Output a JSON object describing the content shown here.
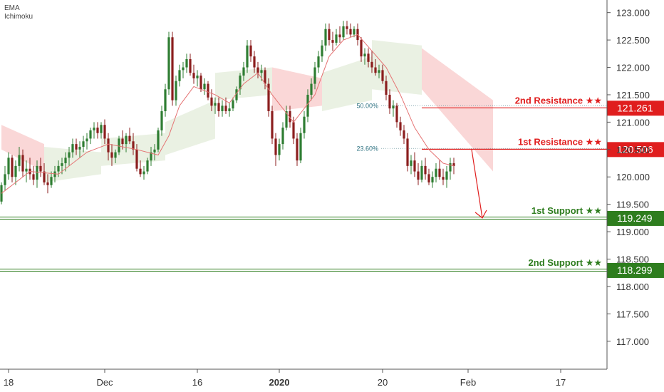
{
  "indicators": [
    "EMA",
    "Ichimoku"
  ],
  "colors": {
    "up": "#2e7d32",
    "down": "#8b1e1e",
    "ema": "#e57373",
    "cloud_bear": "#f8c9c9",
    "cloud_bull": "#e3ecd9",
    "resistance": "#e01e1e",
    "support": "#2e7d1e",
    "fib": "#7aa0a8",
    "axis": "#555555"
  },
  "chart_data": {
    "type": "candlestick",
    "y_range": [
      116.75,
      123.1
    ],
    "y_ticks": [
      "123.000",
      "122.500",
      "122.000",
      "121.500",
      "121.000",
      "120.500",
      "120.000",
      "119.500",
      "119.000",
      "118.500",
      "118.000",
      "117.500",
      "117.000"
    ],
    "x_ticks": [
      {
        "label": "18",
        "bar": 2
      },
      {
        "label": "Dec",
        "bar": 29
      },
      {
        "label": "16",
        "bar": 55
      },
      {
        "label": "2020",
        "bar": 78,
        "bold": true
      },
      {
        "label": "20",
        "bar": 107
      },
      {
        "label": "Feb",
        "bar": 131
      },
      {
        "label": "17",
        "bar": 157
      }
    ],
    "levels": [
      {
        "label": "2nd Resistance ★★",
        "value": "121.261",
        "y": 121.261,
        "kind": "resistance",
        "line_from_bar": 118
      },
      {
        "label": "1st Resistance ★★",
        "value": "120.506",
        "y": 120.506,
        "kind": "resistance",
        "line_from_bar": 118
      },
      {
        "label": "1st Support ★★",
        "value": "119.249",
        "y": 119.249,
        "kind": "support"
      },
      {
        "label": "2nd Support ★★",
        "value": "118.299",
        "y": 118.299,
        "kind": "support"
      }
    ],
    "fibonacci": [
      {
        "label": "50.00%",
        "y": 121.3
      },
      {
        "label": "23.60%",
        "y": 120.52
      }
    ],
    "arrow": {
      "from_bar": 132,
      "from_y": 120.5,
      "to_bar": 135,
      "to_y": 119.25
    },
    "ohlc": [
      [
        119.55,
        119.9,
        119.5,
        119.85
      ],
      [
        119.85,
        120.2,
        119.75,
        120.05
      ],
      [
        120.05,
        120.45,
        119.95,
        120.35
      ],
      [
        120.35,
        120.4,
        119.9,
        120.0
      ],
      [
        120.0,
        120.3,
        119.85,
        120.2
      ],
      [
        120.2,
        120.55,
        120.1,
        120.4
      ],
      [
        120.4,
        120.5,
        120.0,
        120.1
      ],
      [
        120.1,
        120.3,
        119.9,
        120.15
      ],
      [
        120.15,
        120.35,
        119.95,
        120.05
      ],
      [
        120.05,
        120.2,
        119.85,
        119.95
      ],
      [
        119.95,
        120.3,
        119.8,
        120.2
      ],
      [
        120.2,
        120.35,
        120.0,
        120.1
      ],
      [
        120.1,
        120.25,
        119.85,
        119.9
      ],
      [
        119.9,
        120.05,
        119.7,
        119.85
      ],
      [
        119.85,
        120.1,
        119.8,
        120.0
      ],
      [
        120.0,
        120.2,
        119.9,
        120.1
      ],
      [
        120.1,
        120.3,
        120.0,
        120.2
      ],
      [
        120.2,
        120.35,
        120.05,
        120.25
      ],
      [
        120.25,
        120.45,
        120.1,
        120.35
      ],
      [
        120.35,
        120.55,
        120.2,
        120.45
      ],
      [
        120.45,
        120.7,
        120.35,
        120.6
      ],
      [
        120.6,
        120.7,
        120.4,
        120.5
      ],
      [
        120.5,
        120.65,
        120.35,
        120.55
      ],
      [
        120.55,
        120.75,
        120.45,
        120.65
      ],
      [
        120.65,
        120.8,
        120.5,
        120.7
      ],
      [
        120.7,
        120.9,
        120.6,
        120.85
      ],
      [
        120.85,
        121.0,
        120.7,
        120.9
      ],
      [
        120.9,
        121.0,
        120.7,
        120.8
      ],
      [
        120.8,
        121.0,
        120.7,
        120.95
      ],
      [
        120.95,
        121.05,
        120.6,
        120.7
      ],
      [
        120.7,
        120.8,
        120.3,
        120.45
      ],
      [
        120.45,
        120.6,
        120.2,
        120.35
      ],
      [
        120.35,
        120.5,
        120.25,
        120.45
      ],
      [
        120.45,
        120.75,
        120.4,
        120.7
      ],
      [
        120.7,
        120.85,
        120.5,
        120.6
      ],
      [
        120.6,
        120.8,
        120.45,
        120.75
      ],
      [
        120.75,
        120.9,
        120.6,
        120.65
      ],
      [
        120.65,
        120.8,
        120.4,
        120.5
      ],
      [
        120.5,
        120.6,
        120.1,
        120.15
      ],
      [
        120.15,
        120.3,
        120.0,
        120.05
      ],
      [
        120.05,
        120.2,
        119.95,
        120.1
      ],
      [
        120.1,
        120.35,
        120.05,
        120.3
      ],
      [
        120.3,
        120.55,
        120.2,
        120.45
      ],
      [
        120.45,
        120.6,
        120.3,
        120.5
      ],
      [
        120.5,
        120.9,
        120.45,
        120.85
      ],
      [
        120.85,
        121.3,
        120.75,
        121.2
      ],
      [
        121.2,
        121.7,
        121.1,
        121.6
      ],
      [
        121.6,
        122.65,
        121.5,
        122.55
      ],
      [
        122.55,
        122.65,
        121.3,
        121.4
      ],
      [
        121.4,
        121.85,
        121.3,
        121.75
      ],
      [
        121.75,
        122.05,
        121.65,
        121.95
      ],
      [
        121.95,
        122.1,
        121.8,
        122.0
      ],
      [
        122.0,
        122.25,
        121.9,
        122.15
      ],
      [
        122.15,
        122.25,
        121.85,
        121.9
      ],
      [
        121.9,
        122.05,
        121.7,
        121.8
      ],
      [
        121.8,
        121.95,
        121.65,
        121.85
      ],
      [
        121.85,
        121.9,
        121.55,
        121.6
      ],
      [
        121.6,
        121.8,
        121.5,
        121.7
      ],
      [
        121.7,
        121.75,
        121.4,
        121.45
      ],
      [
        121.45,
        121.6,
        121.2,
        121.3
      ],
      [
        121.3,
        121.45,
        121.15,
        121.35
      ],
      [
        121.35,
        121.45,
        121.1,
        121.2
      ],
      [
        121.2,
        121.4,
        121.1,
        121.3
      ],
      [
        121.3,
        121.45,
        121.15,
        121.2
      ],
      [
        121.2,
        121.35,
        121.1,
        121.25
      ],
      [
        121.25,
        121.45,
        121.2,
        121.4
      ],
      [
        121.4,
        121.65,
        121.35,
        121.6
      ],
      [
        121.6,
        121.9,
        121.5,
        121.85
      ],
      [
        121.85,
        122.1,
        121.75,
        122.0
      ],
      [
        122.0,
        122.5,
        121.9,
        122.4
      ],
      [
        122.4,
        122.5,
        122.1,
        122.2
      ],
      [
        122.2,
        122.3,
        121.9,
        122.0
      ],
      [
        122.0,
        122.1,
        121.8,
        121.9
      ],
      [
        121.9,
        122.05,
        121.75,
        121.95
      ],
      [
        121.95,
        122.0,
        121.6,
        121.7
      ],
      [
        121.7,
        121.8,
        121.1,
        121.2
      ],
      [
        121.2,
        121.3,
        120.6,
        120.7
      ],
      [
        120.7,
        120.8,
        120.2,
        120.4
      ],
      [
        120.4,
        120.7,
        120.3,
        120.6
      ],
      [
        120.6,
        121.0,
        120.5,
        120.9
      ],
      [
        120.9,
        121.3,
        120.85,
        121.2
      ],
      [
        121.2,
        121.3,
        120.9,
        121.0
      ],
      [
        121.0,
        121.1,
        120.6,
        120.7
      ],
      [
        120.7,
        120.8,
        120.2,
        120.3
      ],
      [
        120.3,
        120.9,
        120.25,
        120.8
      ],
      [
        120.8,
        121.2,
        120.7,
        121.1
      ],
      [
        121.1,
        121.6,
        121.0,
        121.5
      ],
      [
        121.5,
        121.8,
        121.4,
        121.7
      ],
      [
        121.7,
        122.1,
        121.6,
        122.0
      ],
      [
        122.0,
        122.3,
        121.9,
        122.2
      ],
      [
        122.2,
        122.5,
        122.1,
        122.4
      ],
      [
        122.4,
        122.8,
        122.3,
        122.7
      ],
      [
        122.7,
        122.8,
        122.4,
        122.5
      ],
      [
        122.5,
        122.65,
        122.3,
        122.45
      ],
      [
        122.45,
        122.7,
        122.4,
        122.6
      ],
      [
        122.6,
        122.75,
        122.45,
        122.55
      ],
      [
        122.55,
        122.85,
        122.5,
        122.75
      ],
      [
        122.75,
        122.85,
        122.6,
        122.7
      ],
      [
        122.7,
        122.8,
        122.55,
        122.6
      ],
      [
        122.6,
        122.75,
        122.55,
        122.7
      ],
      [
        122.7,
        122.8,
        122.4,
        122.5
      ],
      [
        122.5,
        122.55,
        122.1,
        122.2
      ],
      [
        122.2,
        122.35,
        122.05,
        122.25
      ],
      [
        122.25,
        122.35,
        122.0,
        122.1
      ],
      [
        122.1,
        122.3,
        121.9,
        122.0
      ],
      [
        122.0,
        122.15,
        121.85,
        121.9
      ],
      [
        121.9,
        122.05,
        121.8,
        121.95
      ],
      [
        121.95,
        122.05,
        121.7,
        121.75
      ],
      [
        121.75,
        121.85,
        121.4,
        121.5
      ],
      [
        121.5,
        121.6,
        121.15,
        121.25
      ],
      [
        121.25,
        121.4,
        121.1,
        121.3
      ],
      [
        121.3,
        121.35,
        120.9,
        121.0
      ],
      [
        121.0,
        121.1,
        120.75,
        120.85
      ],
      [
        120.85,
        120.95,
        120.6,
        120.7
      ],
      [
        120.7,
        120.8,
        120.1,
        120.2
      ],
      [
        120.2,
        120.4,
        120.05,
        120.3
      ],
      [
        120.3,
        120.45,
        120.0,
        120.1
      ],
      [
        120.1,
        120.25,
        119.85,
        119.95
      ],
      [
        119.95,
        120.3,
        119.9,
        120.2
      ],
      [
        120.2,
        120.35,
        119.95,
        120.05
      ],
      [
        120.05,
        120.15,
        119.85,
        119.9
      ],
      [
        119.9,
        120.1,
        119.8,
        120.0
      ],
      [
        120.0,
        120.25,
        119.9,
        120.15
      ],
      [
        120.15,
        120.3,
        119.95,
        120.0
      ],
      [
        120.0,
        120.15,
        119.85,
        119.95
      ],
      [
        119.95,
        120.2,
        119.8,
        120.1
      ],
      [
        120.1,
        120.35,
        119.95,
        120.25
      ],
      [
        120.25,
        120.35,
        120.05,
        120.2
      ]
    ],
    "ema": [
      [
        0,
        119.7
      ],
      [
        8,
        120.1
      ],
      [
        16,
        120.05
      ],
      [
        24,
        120.45
      ],
      [
        30,
        120.6
      ],
      [
        38,
        120.5
      ],
      [
        44,
        120.4
      ],
      [
        47,
        120.75
      ],
      [
        50,
        121.3
      ],
      [
        54,
        121.65
      ],
      [
        60,
        121.5
      ],
      [
        64,
        121.35
      ],
      [
        68,
        121.7
      ],
      [
        72,
        121.9
      ],
      [
        76,
        121.5
      ],
      [
        82,
        121.0
      ],
      [
        88,
        121.5
      ],
      [
        92,
        122.2
      ],
      [
        96,
        122.5
      ],
      [
        100,
        122.6
      ],
      [
        104,
        122.3
      ],
      [
        108,
        122.0
      ],
      [
        112,
        121.5
      ],
      [
        116,
        120.9
      ],
      [
        120,
        120.5
      ],
      [
        124,
        120.25
      ],
      [
        127,
        120.2
      ]
    ],
    "cloud": [
      {
        "x0": 0,
        "x1": 12,
        "top": [
          120.95,
          120.6
        ],
        "bot": [
          120.5,
          120.1
        ],
        "kind": "bear"
      },
      {
        "x0": 12,
        "x1": 28,
        "top": [
          120.55,
          120.45
        ],
        "bot": [
          119.9,
          120.05
        ],
        "kind": "bull"
      },
      {
        "x0": 28,
        "x1": 46,
        "top": [
          120.7,
          120.8
        ],
        "bot": [
          120.2,
          120.3
        ],
        "kind": "bull"
      },
      {
        "x0": 46,
        "x1": 60,
        "top": [
          121.0,
          121.4
        ],
        "bot": [
          120.4,
          120.7
        ],
        "kind": "bull"
      },
      {
        "x0": 60,
        "x1": 76,
        "top": [
          121.9,
          122.0
        ],
        "bot": [
          121.4,
          121.5
        ],
        "kind": "bull"
      },
      {
        "x0": 76,
        "x1": 90,
        "top": [
          122.0,
          121.8
        ],
        "bot": [
          121.2,
          121.3
        ],
        "kind": "bear"
      },
      {
        "x0": 90,
        "x1": 104,
        "top": [
          121.9,
          122.2
        ],
        "bot": [
          121.2,
          121.4
        ],
        "kind": "bull"
      },
      {
        "x0": 104,
        "x1": 118,
        "top": [
          122.5,
          122.4
        ],
        "bot": [
          121.6,
          121.5
        ],
        "kind": "bull"
      },
      {
        "x0": 118,
        "x1": 138,
        "top": [
          122.35,
          121.4
        ],
        "bot": [
          121.6,
          120.1
        ],
        "kind": "bear"
      }
    ]
  }
}
